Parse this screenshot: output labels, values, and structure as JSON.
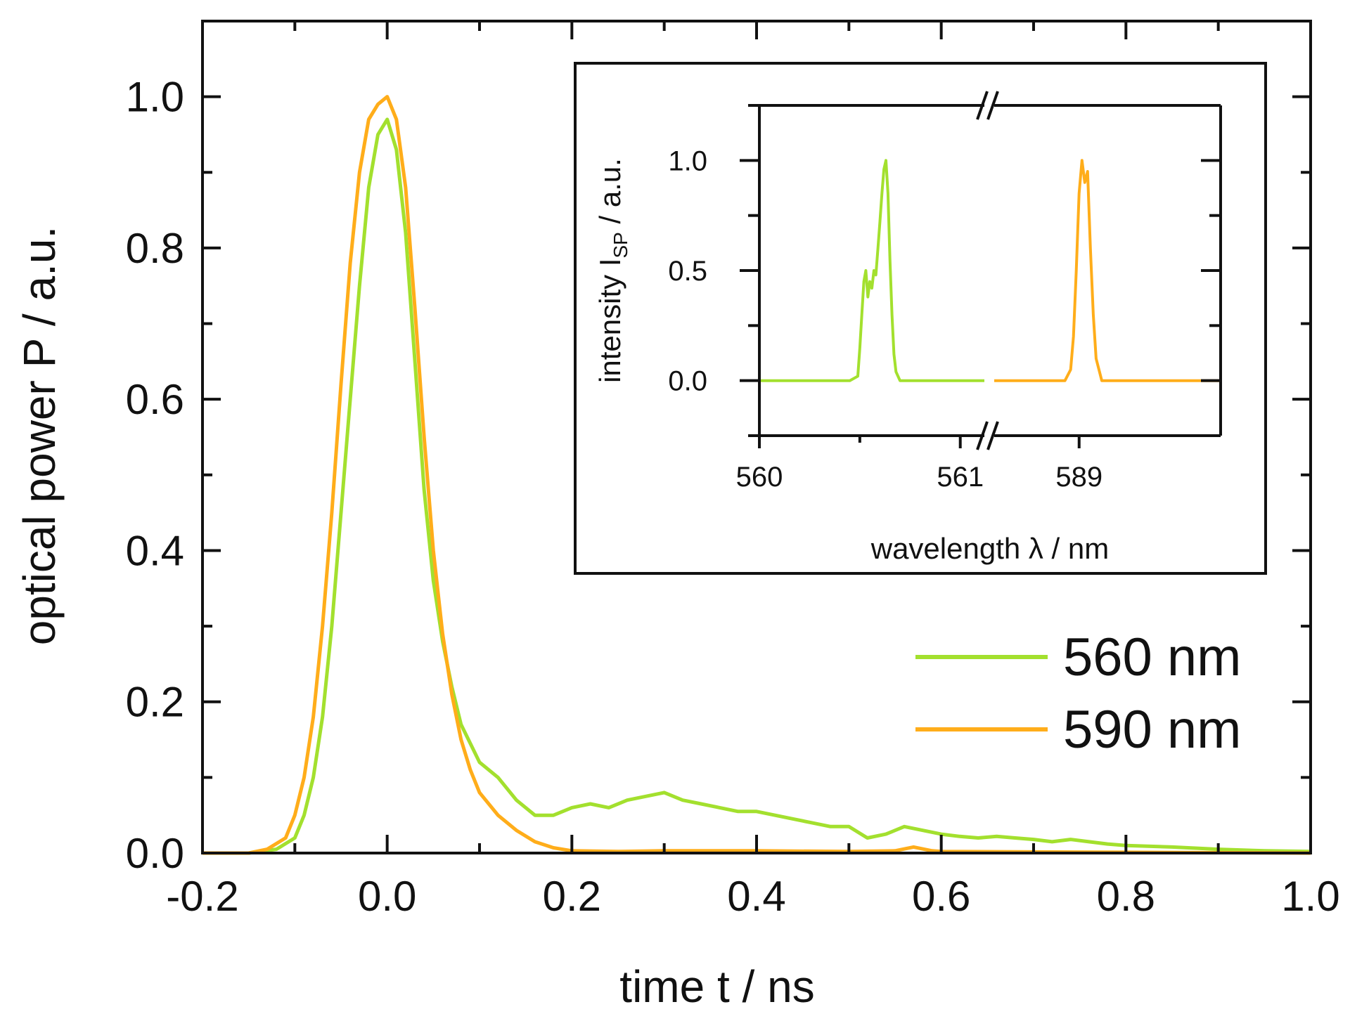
{
  "colors": {
    "green": "#a3e02e",
    "orange": "#ffad1a",
    "axis": "#111111"
  },
  "chart_data": [
    {
      "type": "line",
      "xlabel": "time t / ns",
      "ylabel": "optical power P / a.u.",
      "xlim": [
        -0.2,
        1.0
      ],
      "ylim": [
        0.0,
        1.1
      ],
      "xticks": [
        -0.2,
        0.0,
        0.2,
        0.4,
        0.6,
        0.8,
        1.0
      ],
      "xtick_labels": [
        "-0.2",
        "0.0",
        "0.2",
        "0.4",
        "0.6",
        "0.8",
        "1.0"
      ],
      "yticks": [
        0.0,
        0.2,
        0.4,
        0.6,
        0.8,
        1.0
      ],
      "ytick_labels": [
        "0.0",
        "0.2",
        "0.4",
        "0.6",
        "0.8",
        "1.0"
      ],
      "grid": false,
      "legend_position": "right",
      "series": [
        {
          "name": "560 nm",
          "color": "#a3e02e",
          "x": [
            -0.2,
            -0.15,
            -0.12,
            -0.1,
            -0.09,
            -0.08,
            -0.07,
            -0.06,
            -0.05,
            -0.04,
            -0.03,
            -0.02,
            -0.01,
            0.0,
            0.01,
            0.02,
            0.03,
            0.04,
            0.05,
            0.06,
            0.07,
            0.08,
            0.1,
            0.12,
            0.14,
            0.16,
            0.18,
            0.2,
            0.22,
            0.24,
            0.26,
            0.28,
            0.3,
            0.32,
            0.34,
            0.36,
            0.38,
            0.4,
            0.42,
            0.44,
            0.46,
            0.48,
            0.5,
            0.52,
            0.54,
            0.56,
            0.58,
            0.6,
            0.62,
            0.64,
            0.66,
            0.68,
            0.7,
            0.72,
            0.74,
            0.76,
            0.78,
            0.8,
            0.85,
            0.9,
            0.95,
            1.0
          ],
          "y": [
            0.0,
            0.0,
            0.005,
            0.02,
            0.05,
            0.1,
            0.18,
            0.3,
            0.45,
            0.6,
            0.75,
            0.88,
            0.95,
            0.97,
            0.93,
            0.82,
            0.65,
            0.48,
            0.36,
            0.28,
            0.22,
            0.17,
            0.12,
            0.1,
            0.07,
            0.05,
            0.05,
            0.06,
            0.065,
            0.06,
            0.07,
            0.075,
            0.08,
            0.07,
            0.065,
            0.06,
            0.055,
            0.055,
            0.05,
            0.045,
            0.04,
            0.035,
            0.035,
            0.02,
            0.025,
            0.035,
            0.03,
            0.025,
            0.022,
            0.02,
            0.022,
            0.02,
            0.018,
            0.015,
            0.018,
            0.015,
            0.012,
            0.01,
            0.008,
            0.005,
            0.003,
            0.002
          ]
        },
        {
          "name": "590 nm",
          "color": "#ffad1a",
          "x": [
            -0.2,
            -0.15,
            -0.13,
            -0.11,
            -0.1,
            -0.09,
            -0.08,
            -0.07,
            -0.06,
            -0.05,
            -0.04,
            -0.03,
            -0.02,
            -0.01,
            0.0,
            0.01,
            0.02,
            0.03,
            0.04,
            0.05,
            0.06,
            0.07,
            0.08,
            0.09,
            0.1,
            0.12,
            0.14,
            0.16,
            0.18,
            0.2,
            0.25,
            0.3,
            0.4,
            0.5,
            0.55,
            0.57,
            0.59,
            0.6,
            0.8,
            1.0
          ],
          "y": [
            0.0,
            0.0,
            0.005,
            0.02,
            0.05,
            0.1,
            0.18,
            0.3,
            0.45,
            0.62,
            0.78,
            0.9,
            0.97,
            0.99,
            1.0,
            0.97,
            0.88,
            0.72,
            0.55,
            0.4,
            0.29,
            0.21,
            0.15,
            0.11,
            0.08,
            0.05,
            0.03,
            0.015,
            0.007,
            0.003,
            0.002,
            0.003,
            0.003,
            0.002,
            0.003,
            0.008,
            0.003,
            0.002,
            0.001,
            0.0
          ]
        }
      ]
    },
    {
      "type": "line",
      "xlabel": "wavelength λ / nm",
      "ylabel_main": "intensity I",
      "ylabel_sub": "SP",
      "ylabel_tail": " / a.u.",
      "ylim": [
        -0.25,
        1.25
      ],
      "yticks": [
        0.0,
        0.5,
        1.0
      ],
      "ytick_labels": [
        "0.0",
        "0.5",
        "1.0"
      ],
      "xtick_labels": [
        "560",
        "561",
        "589"
      ],
      "grid": false,
      "x_axis_break": true,
      "panels": [
        {
          "xlim": [
            560.0,
            561.12
          ],
          "xticks": [
            560.0,
            561.0
          ],
          "minor_xticks": [
            560.5
          ]
        },
        {
          "xlim": [
            588.7,
            589.5
          ],
          "xticks": [
            589.0
          ],
          "minor_xticks": []
        }
      ],
      "series": [
        {
          "name": "",
          "color": "#a3e02e",
          "panel": 0,
          "x": [
            560.0,
            560.45,
            560.49,
            560.5,
            560.51,
            560.52,
            560.53,
            560.54,
            560.55,
            560.56,
            560.57,
            560.58,
            560.59,
            560.6,
            560.61,
            560.62,
            560.63,
            560.64,
            560.65,
            560.66,
            560.67,
            560.68,
            560.7,
            561.12
          ],
          "y": [
            0.0,
            0.0,
            0.02,
            0.15,
            0.3,
            0.45,
            0.5,
            0.38,
            0.45,
            0.42,
            0.5,
            0.48,
            0.6,
            0.72,
            0.85,
            0.96,
            1.0,
            0.85,
            0.55,
            0.3,
            0.12,
            0.04,
            0.0,
            0.0
          ]
        },
        {
          "name": "",
          "color": "#ffad1a",
          "panel": 1,
          "x": [
            588.7,
            588.95,
            588.97,
            588.98,
            588.99,
            589.0,
            589.01,
            589.02,
            589.03,
            589.04,
            589.05,
            589.06,
            589.08,
            589.5
          ],
          "y": [
            0.0,
            0.0,
            0.05,
            0.2,
            0.5,
            0.85,
            1.0,
            0.9,
            0.95,
            0.6,
            0.3,
            0.1,
            0.0,
            0.0
          ]
        }
      ]
    }
  ]
}
